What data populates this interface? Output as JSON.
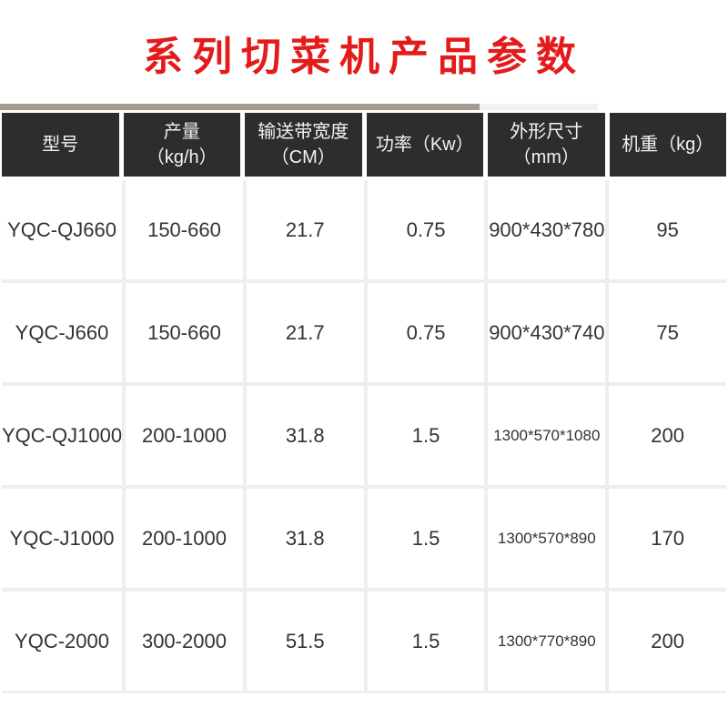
{
  "title": {
    "text": "系列切菜机产品参数"
  },
  "colors": {
    "title_red": "#e31b1b",
    "header_bg": "#2d2d2d",
    "header_text": "#f2f2f2",
    "grid_line": "#eceef0",
    "strip_tan": "#a89b8d",
    "strip_light": "#f1f1f1",
    "cell_text": "#333333"
  },
  "table": {
    "columns": [
      {
        "key": "model",
        "lines": [
          "型号"
        ]
      },
      {
        "key": "output",
        "lines": [
          "产量",
          "（kg/h）"
        ]
      },
      {
        "key": "belt-width",
        "lines": [
          "输送带宽度",
          "（CM）"
        ]
      },
      {
        "key": "power",
        "lines": [
          "功率（Kw）"
        ]
      },
      {
        "key": "dimensions",
        "lines": [
          "外形尺寸",
          "（mm）"
        ]
      },
      {
        "key": "weight",
        "lines": [
          "机重（kg）"
        ]
      }
    ],
    "rows": [
      [
        "YQC-QJ660",
        "150-660",
        "21.7",
        "0.75",
        "900*430*780",
        "95"
      ],
      [
        "YQC-J660",
        "150-660",
        "21.7",
        "0.75",
        "900*430*740",
        "75"
      ],
      [
        "YQC-QJ1000",
        "200-1000",
        "31.8",
        "1.5",
        "1300*570*1080",
        "200"
      ],
      [
        "YQC-J1000",
        "200-1000",
        "31.8",
        "1.5",
        "1300*570*890",
        "170"
      ],
      [
        "YQC-2000",
        "300-2000",
        "51.5",
        "1.5",
        "1300*770*890",
        "200"
      ]
    ]
  }
}
